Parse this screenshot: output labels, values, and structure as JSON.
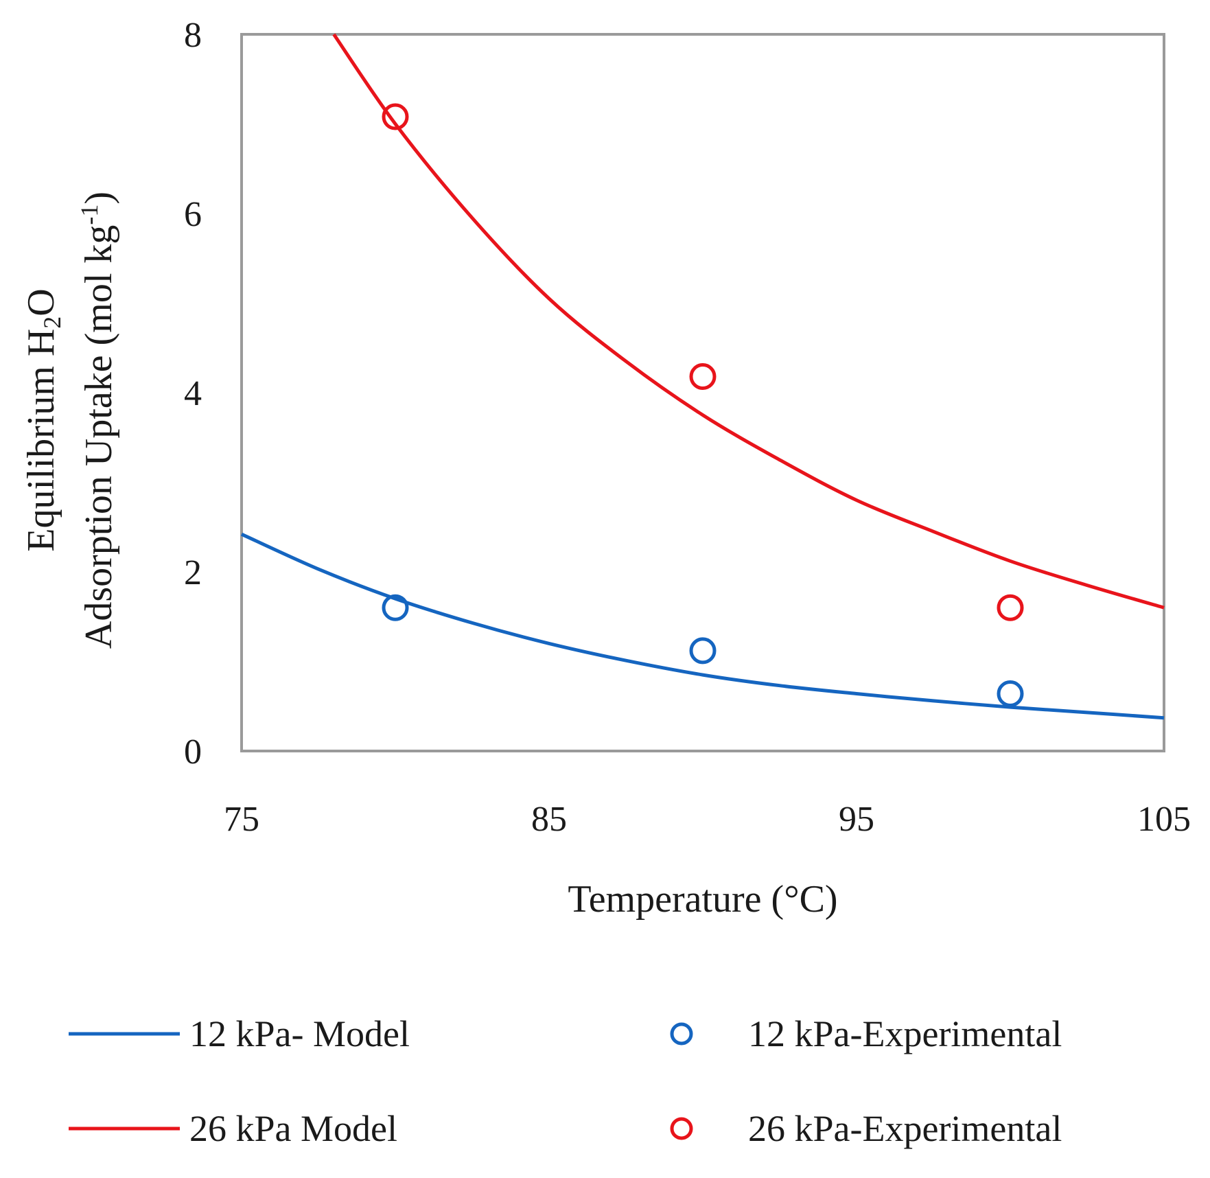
{
  "chart_data": {
    "type": "scatter",
    "title": "",
    "xlabel": "Temperature (°C)",
    "ylabel": {
      "line1_prefix": "Equilibrium H",
      "line1_sub": "2",
      "line1_suffix": "O",
      "line2_prefix": "Adsorption Uptake (mol kg",
      "line2_sup": "-1",
      "line2_suffix": ")"
    },
    "xlim": [
      75,
      105
    ],
    "ylim": [
      0,
      8
    ],
    "xticks": [
      75,
      85,
      95,
      105
    ],
    "yticks": [
      0,
      2,
      4,
      6,
      8
    ],
    "grid": false,
    "legend_position": "bottom",
    "series": [
      {
        "name": "12 kPa- Model",
        "kind": "line",
        "color": "#1565c0",
        "x": [
          75,
          77.5,
          80,
          82.5,
          85,
          87.5,
          90,
          92.5,
          95,
          97.5,
          100,
          102.5,
          105
        ],
        "y": [
          2.42,
          2.03,
          1.7,
          1.43,
          1.2,
          1.01,
          0.85,
          0.73,
          0.64,
          0.56,
          0.49,
          0.43,
          0.37
        ]
      },
      {
        "name": "26 kPa Model",
        "kind": "line",
        "color": "#e8141b",
        "x": [
          78,
          80,
          82.5,
          85,
          87.5,
          90,
          92.5,
          95,
          97.5,
          100,
          102.5,
          105
        ],
        "y": [
          8.0,
          7.0,
          5.95,
          5.05,
          4.35,
          3.75,
          3.25,
          2.8,
          2.45,
          2.12,
          1.85,
          1.6
        ]
      },
      {
        "name": "12 kPa-Experimental",
        "kind": "scatter",
        "color": "#1565c0",
        "x": [
          80,
          90,
          100
        ],
        "y": [
          1.6,
          1.12,
          0.64
        ]
      },
      {
        "name": "26 kPa-Experimental",
        "kind": "scatter",
        "color": "#e8141b",
        "x": [
          80,
          90,
          100
        ],
        "y": [
          7.08,
          4.18,
          1.6
        ]
      }
    ]
  }
}
